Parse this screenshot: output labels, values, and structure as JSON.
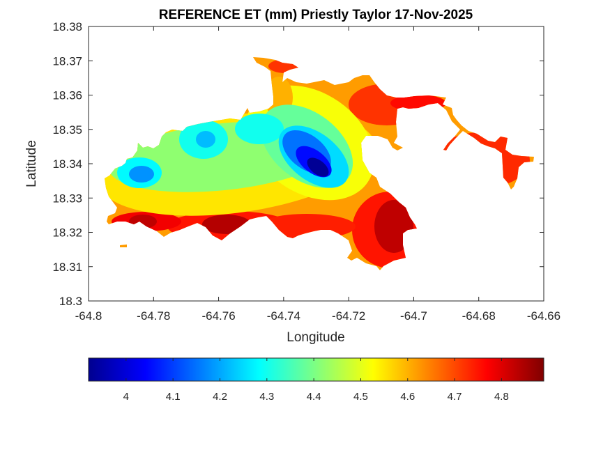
{
  "chart_data": {
    "type": "heatmap",
    "title": "REFERENCE ET (mm) Priestly Taylor 17-Nov-2025",
    "xlabel": "Longitude",
    "ylabel": "Latitude",
    "xlim": [
      -64.8,
      -64.66
    ],
    "ylim": [
      18.3,
      18.38
    ],
    "x_ticks": [
      -64.8,
      -64.78,
      -64.76,
      -64.74,
      -64.72,
      -64.7,
      -64.68,
      -64.66
    ],
    "x_tick_labels": [
      "-64.8",
      "-64.78",
      "-64.76",
      "-64.74",
      "-64.72",
      "-64.7",
      "-64.68",
      "-64.66"
    ],
    "y_ticks": [
      18.3,
      18.31,
      18.32,
      18.33,
      18.34,
      18.35,
      18.36,
      18.37,
      18.38
    ],
    "y_tick_labels": [
      "18.3",
      "18.31",
      "18.32",
      "18.33",
      "18.34",
      "18.35",
      "18.36",
      "18.37",
      "18.38"
    ],
    "colormap": "jet",
    "colorbar": {
      "orientation": "horizontal",
      "placement": "below",
      "range": [
        3.92,
        4.89
      ],
      "ticks": [
        4.0,
        4.1,
        4.2,
        4.3,
        4.4,
        4.5,
        4.6,
        4.7,
        4.8
      ],
      "tick_labels": [
        "4",
        "4.1",
        "4.2",
        "4.3",
        "4.4",
        "4.5",
        "4.6",
        "4.7",
        "4.8"
      ]
    },
    "field": {
      "grid": "none",
      "minimum": {
        "lon": -64.729,
        "lat": 18.3365,
        "value": 3.93
      },
      "secondary_lows": [
        {
          "lon": -64.784,
          "lat": 18.3365,
          "value": 4.18
        },
        {
          "lon": -64.7635,
          "lat": 18.3465,
          "value": 4.22
        },
        {
          "lon": -64.7475,
          "lat": 18.351,
          "value": 4.25
        }
      ],
      "maximum_regions": [
        {
          "lon": -64.709,
          "lat": 18.3195,
          "value": 4.87
        },
        {
          "lon": -64.7595,
          "lat": 18.3225,
          "value": 4.84
        },
        {
          "lon": -64.785,
          "lat": 18.3225,
          "value": 4.83
        }
      ]
    }
  }
}
